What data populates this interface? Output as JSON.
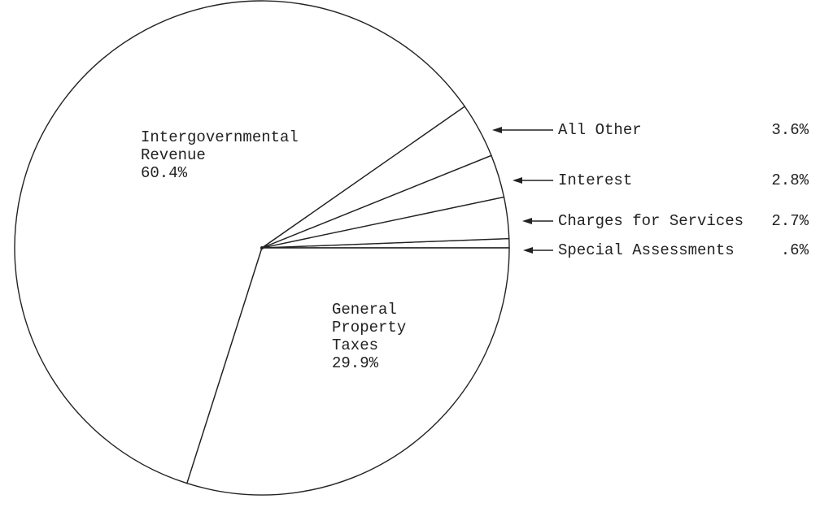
{
  "chart_data": {
    "type": "pie",
    "categories": [
      "Special Assessments",
      "Charges for Services",
      "Interest",
      "All Other",
      "Intergovernmental Revenue",
      "General Property Taxes"
    ],
    "values": [
      0.6,
      2.7,
      2.8,
      3.6,
      60.4,
      29.9
    ],
    "value_labels": [
      ".6%",
      "2.7%",
      "2.8%",
      "3.6%",
      "60.4%",
      "29.9%"
    ],
    "color": "#ffffff"
  }
}
